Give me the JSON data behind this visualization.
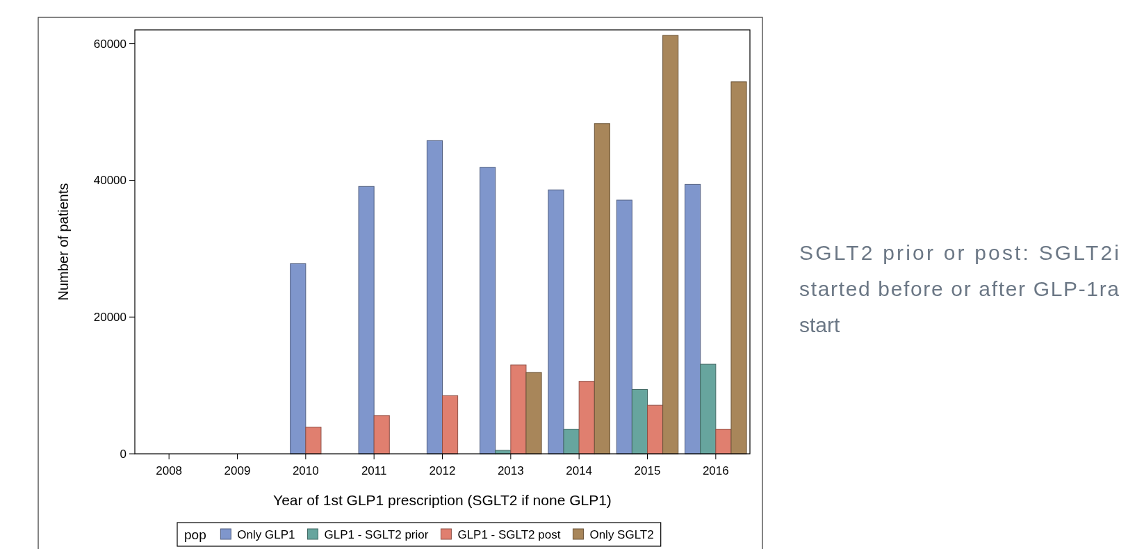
{
  "chart_data": {
    "type": "bar",
    "xlabel": "Year of 1st GLP1 prescription (SGLT2 if none GLP1)",
    "ylabel": "Number of patients",
    "legend_title": "pop",
    "legend": "bottom",
    "categories": [
      "2008",
      "2009",
      "2010",
      "2011",
      "2012",
      "2013",
      "2014",
      "2015",
      "2016"
    ],
    "series": [
      {
        "name": "Only GLP1",
        "color": "#7f96cc",
        "values": [
          null,
          null,
          27800,
          39100,
          45800,
          41900,
          38600,
          37100,
          39400
        ]
      },
      {
        "name": "GLP1 - SGLT2 prior",
        "color": "#67a59e",
        "values": [
          null,
          null,
          null,
          null,
          null,
          500,
          3600,
          9400,
          13100
        ]
      },
      {
        "name": "GLP1 - SGLT2 post",
        "color": "#e07f6f",
        "values": [
          null,
          null,
          3900,
          5600,
          8500,
          13000,
          10600,
          7100,
          3600
        ]
      },
      {
        "name": "Only SGLT2",
        "color": "#a8865a",
        "values": [
          null,
          null,
          null,
          null,
          null,
          11900,
          48300,
          61200,
          54400
        ]
      }
    ],
    "ylim": [
      0,
      62000
    ],
    "yticks": [
      0,
      20000,
      40000,
      60000
    ],
    "grid": false,
    "annotations": [
      "SGLT2 prior or post: SGLT2i started before or after GLP-1ra start"
    ]
  }
}
